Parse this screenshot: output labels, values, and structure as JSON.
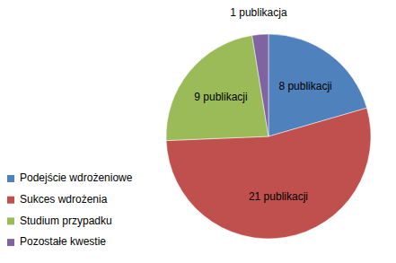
{
  "chart_data": {
    "type": "pie",
    "categories": [
      "Podejście wdrożeniowe",
      "Sukces wdrożenia",
      "Studium przypadku",
      "Pozostałe kwestie"
    ],
    "values": [
      8,
      21,
      9,
      1
    ],
    "value_labels": [
      "8 publikacji",
      "21 publikacji",
      "9 publikacji",
      "1 publikacja"
    ],
    "colors": [
      "#4f81bd",
      "#c0504d",
      "#9bbb59",
      "#8064a2"
    ],
    "data_labels": true,
    "legend": "left"
  }
}
